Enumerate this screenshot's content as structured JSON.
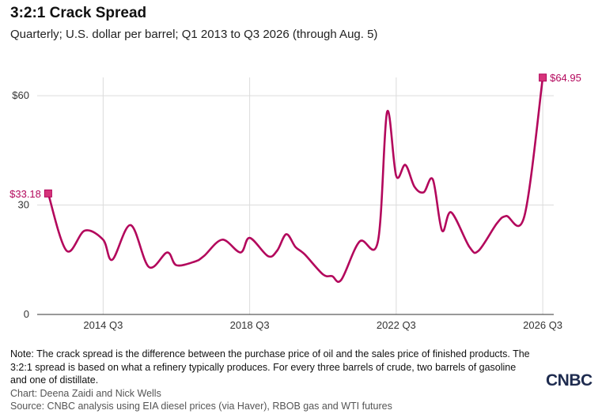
{
  "header": {
    "title": "3:2:1 Crack Spread",
    "subtitle": "Quarterly; U.S. dollar per barrel; Q1 2013 to Q3 2026 (through Aug. 5)"
  },
  "chart_data": {
    "type": "line",
    "title": "3:2:1 Crack Spread",
    "subtitle": "Quarterly; U.S. dollar per barrel; Q1 2013 to Q3 2026 (through Aug. 5)",
    "xlabel": "",
    "ylabel": "",
    "x_range": [
      2012.7,
      2026.8
    ],
    "ylim": [
      0,
      65
    ],
    "y_ticks": [
      {
        "value": 0,
        "label": "0"
      },
      {
        "value": 30,
        "label": "30"
      },
      {
        "value": 60,
        "label": "$60"
      }
    ],
    "x_ticks": [
      {
        "value": 2014.5,
        "label": "2014 Q3"
      },
      {
        "value": 2018.5,
        "label": "2018 Q3"
      },
      {
        "value": 2022.5,
        "label": "2022 Q3"
      },
      {
        "value": 2026.5,
        "label": "2026 Q3"
      }
    ],
    "grid": "vertical at x ticks, horizontal at y ticks",
    "line_color": "#b3075c",
    "series": [
      {
        "values": [
          [
            2013.0,
            33.18
          ],
          [
            2013.5,
            17.5
          ],
          [
            2014.0,
            23.0
          ],
          [
            2014.5,
            20.5
          ],
          [
            2014.75,
            15.0
          ],
          [
            2015.25,
            24.5
          ],
          [
            2015.75,
            13.0
          ],
          [
            2016.25,
            17.0
          ],
          [
            2016.5,
            13.5
          ],
          [
            2017.0,
            14.5
          ],
          [
            2017.25,
            16.0
          ],
          [
            2017.75,
            20.5
          ],
          [
            2018.25,
            17.0
          ],
          [
            2018.5,
            21.0
          ],
          [
            2019.0,
            16.0
          ],
          [
            2019.25,
            17.5
          ],
          [
            2019.5,
            22.0
          ],
          [
            2019.75,
            18.5
          ],
          [
            2020.0,
            16.5
          ],
          [
            2020.5,
            11.0
          ],
          [
            2020.75,
            10.5
          ],
          [
            2021.0,
            9.5
          ],
          [
            2021.5,
            20.0
          ],
          [
            2022.0,
            20.0
          ],
          [
            2022.25,
            55.5
          ],
          [
            2022.5,
            38.0
          ],
          [
            2022.75,
            41.0
          ],
          [
            2023.0,
            35.0
          ],
          [
            2023.25,
            33.5
          ],
          [
            2023.5,
            37.0
          ],
          [
            2023.75,
            23.0
          ],
          [
            2024.0,
            28.0
          ],
          [
            2024.5,
            18.5
          ],
          [
            2024.75,
            17.5
          ],
          [
            2025.25,
            25.0
          ],
          [
            2025.5,
            27.0
          ],
          [
            2026.0,
            27.0
          ],
          [
            2026.5,
            64.95
          ]
        ]
      }
    ],
    "annotations": [
      {
        "x": 2013.0,
        "y": 33.18,
        "label": "$33.18"
      },
      {
        "x": 2026.5,
        "y": 64.95,
        "label": "$64.95"
      }
    ]
  },
  "footer": {
    "note": "Note: The crack spread is the difference between the purchase price of oil and the sales price of finished products. The 3:2:1 spread is based on what a refinery typically produces. For every three barrels of crude, two barrels of gasoline and one of distillate.",
    "credit": "Chart: Deena Zaidi and Nick Wells",
    "source": "Source: CNBC analysis using EIA diesel prices (via Haver), RBOB gas and WTI futures",
    "logo": "CNBC"
  }
}
